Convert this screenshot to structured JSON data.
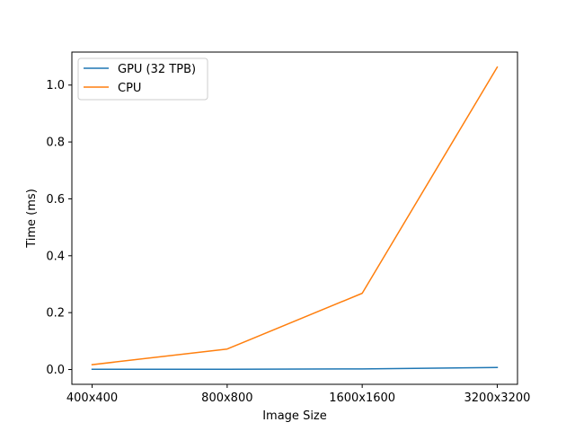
{
  "chart_data": {
    "type": "line",
    "categories": [
      "400x400",
      "800x800",
      "1600x1600",
      "3200x3200"
    ],
    "series": [
      {
        "name": "GPU (32 TPB)",
        "values": [
          0.001,
          0.001,
          0.002,
          0.007
        ],
        "color": "#1f77b4"
      },
      {
        "name": "CPU",
        "values": [
          0.017,
          0.072,
          0.268,
          1.063
        ],
        "color": "#ff7f0e"
      }
    ],
    "title": "",
    "xlabel": "Image Size",
    "ylabel": "Time (ms)",
    "ylim": [
      -0.052,
      1.116
    ],
    "yticks": [
      0.0,
      0.2,
      0.4,
      0.6,
      0.8,
      1.0
    ],
    "ytick_labels": [
      "0.0",
      "0.2",
      "0.4",
      "0.6",
      "0.8",
      "1.0"
    ],
    "grid": false,
    "legend_position": "upper-left"
  }
}
